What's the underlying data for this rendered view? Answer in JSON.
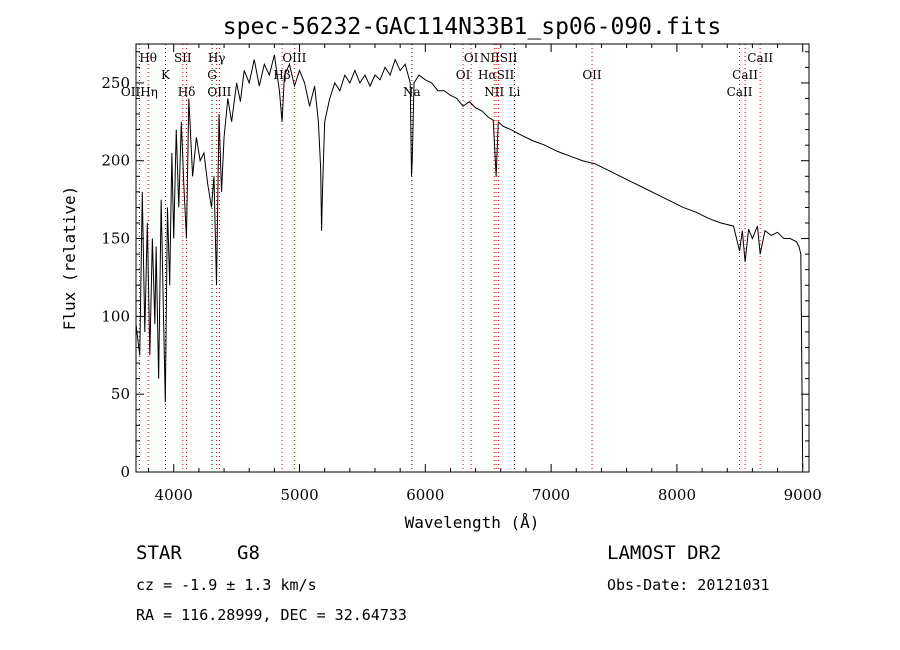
{
  "chart_data": {
    "type": "line",
    "title": "spec-56232-GAC114N33B1_sp06-090.fits",
    "xlabel": "Wavelength (Å)",
    "ylabel": "Flux (relative)",
    "xlim": [
      3700,
      9050
    ],
    "ylim": [
      0,
      275
    ],
    "x_ticks": [
      4000,
      5000,
      6000,
      7000,
      8000,
      9000
    ],
    "y_ticks": [
      0,
      50,
      100,
      150,
      200,
      250
    ],
    "grid": false,
    "series": [
      {
        "points": [
          [
            3700,
            95
          ],
          [
            3730,
            75
          ],
          [
            3750,
            180
          ],
          [
            3770,
            90
          ],
          [
            3790,
            160
          ],
          [
            3810,
            75
          ],
          [
            3830,
            150
          ],
          [
            3850,
            95
          ],
          [
            3860,
            145
          ],
          [
            3880,
            60
          ],
          [
            3900,
            175
          ],
          [
            3920,
            95
          ],
          [
            3933,
            45
          ],
          [
            3950,
            170
          ],
          [
            3968,
            120
          ],
          [
            3985,
            205
          ],
          [
            4000,
            150
          ],
          [
            4020,
            220
          ],
          [
            4040,
            170
          ],
          [
            4060,
            225
          ],
          [
            4080,
            185
          ],
          [
            4101,
            150
          ],
          [
            4120,
            240
          ],
          [
            4150,
            190
          ],
          [
            4180,
            215
          ],
          [
            4210,
            200
          ],
          [
            4240,
            205
          ],
          [
            4270,
            185
          ],
          [
            4300,
            170
          ],
          [
            4320,
            190
          ],
          [
            4340,
            120
          ],
          [
            4360,
            230
          ],
          [
            4380,
            180
          ],
          [
            4400,
            215
          ],
          [
            4430,
            240
          ],
          [
            4460,
            225
          ],
          [
            4500,
            250
          ],
          [
            4530,
            238
          ],
          [
            4560,
            258
          ],
          [
            4600,
            250
          ],
          [
            4640,
            265
          ],
          [
            4680,
            248
          ],
          [
            4720,
            262
          ],
          [
            4760,
            255
          ],
          [
            4800,
            268
          ],
          [
            4840,
            245
          ],
          [
            4861,
            225
          ],
          [
            4880,
            255
          ],
          [
            4920,
            262
          ],
          [
            4960,
            248
          ],
          [
            5000,
            258
          ],
          [
            5040,
            250
          ],
          [
            5080,
            235
          ],
          [
            5120,
            248
          ],
          [
            5150,
            225
          ],
          [
            5168,
            195
          ],
          [
            5175,
            155
          ],
          [
            5184,
            185
          ],
          [
            5200,
            225
          ],
          [
            5240,
            240
          ],
          [
            5280,
            250
          ],
          [
            5320,
            245
          ],
          [
            5360,
            255
          ],
          [
            5400,
            250
          ],
          [
            5440,
            258
          ],
          [
            5480,
            250
          ],
          [
            5520,
            255
          ],
          [
            5560,
            248
          ],
          [
            5600,
            255
          ],
          [
            5640,
            252
          ],
          [
            5680,
            260
          ],
          [
            5720,
            255
          ],
          [
            5760,
            265
          ],
          [
            5800,
            258
          ],
          [
            5840,
            262
          ],
          [
            5880,
            250
          ],
          [
            5890,
            190
          ],
          [
            5896,
            200
          ],
          [
            5910,
            250
          ],
          [
            5950,
            255
          ],
          [
            6000,
            252
          ],
          [
            6050,
            250
          ],
          [
            6100,
            245
          ],
          [
            6150,
            245
          ],
          [
            6200,
            242
          ],
          [
            6250,
            240
          ],
          [
            6300,
            235
          ],
          [
            6350,
            238
          ],
          [
            6400,
            234
          ],
          [
            6450,
            232
          ],
          [
            6500,
            228
          ],
          [
            6540,
            226
          ],
          [
            6563,
            190
          ],
          [
            6580,
            225
          ],
          [
            6620,
            222
          ],
          [
            6680,
            220
          ],
          [
            6750,
            217
          ],
          [
            6850,
            213
          ],
          [
            6950,
            210
          ],
          [
            7050,
            206
          ],
          [
            7150,
            203
          ],
          [
            7250,
            200
          ],
          [
            7350,
            198
          ],
          [
            7450,
            194
          ],
          [
            7550,
            190
          ],
          [
            7650,
            186
          ],
          [
            7750,
            182
          ],
          [
            7850,
            178
          ],
          [
            7950,
            174
          ],
          [
            8050,
            170
          ],
          [
            8150,
            167
          ],
          [
            8250,
            163
          ],
          [
            8350,
            160
          ],
          [
            8450,
            158
          ],
          [
            8498,
            142
          ],
          [
            8520,
            155
          ],
          [
            8542,
            135
          ],
          [
            8570,
            156
          ],
          [
            8600,
            150
          ],
          [
            8640,
            158
          ],
          [
            8662,
            140
          ],
          [
            8700,
            155
          ],
          [
            8750,
            152
          ],
          [
            8800,
            154
          ],
          [
            8850,
            150
          ],
          [
            8900,
            150
          ],
          [
            8950,
            148
          ],
          [
            8970,
            145
          ],
          [
            8985,
            140
          ],
          [
            9000,
            3
          ]
        ]
      }
    ],
    "line_markers": [
      {
        "label": "Hθ",
        "x": 3797,
        "row": 1,
        "color": "#dd0000"
      },
      {
        "label": "OIIHη",
        "x": 3727,
        "row": 3,
        "color": "#dd0000"
      },
      {
        "label": "K",
        "x": 3934,
        "row": 2,
        "color": "#000000"
      },
      {
        "label": "SII",
        "x": 4072,
        "row": 1,
        "color": "#dd0000"
      },
      {
        "label": "Hδ",
        "x": 4102,
        "row": 3,
        "color": "#dd0000"
      },
      {
        "label": "Hγ",
        "x": 4341,
        "row": 1,
        "color": "#dd0000"
      },
      {
        "label": "G",
        "x": 4305,
        "row": 2,
        "color": "#000000"
      },
      {
        "label": "OIII",
        "x": 4363,
        "row": 3,
        "color": "#dd0000"
      },
      {
        "label": "Hβ",
        "x": 4861,
        "row": 2,
        "color": "#dd0000"
      },
      {
        "label": "OIII",
        "x": 4959,
        "row": 1,
        "color": "#dd0000"
      },
      {
        "label": "Na",
        "x": 5893,
        "row": 3,
        "color": "#000000"
      },
      {
        "label": "OI",
        "x": 6364,
        "row": 1,
        "color": "#dd0000"
      },
      {
        "label": "OI",
        "x": 6300,
        "row": 2,
        "color": "#dd0000"
      },
      {
        "label": "NIISII",
        "x": 6583,
        "row": 1,
        "color": "#dd0000"
      },
      {
        "label": "HαSII",
        "x": 6563,
        "row": 2,
        "color": "#dd0000"
      },
      {
        "label": "NII",
        "x": 6548,
        "row": 3,
        "color": "#dd0000"
      },
      {
        "label": "Li",
        "x": 6708,
        "row": 3,
        "color": "#000000"
      },
      {
        "label": "OII",
        "x": 7325,
        "row": 2,
        "color": "#dd0000"
      },
      {
        "label": "CaII",
        "x": 8662,
        "row": 1,
        "color": "#dd0000"
      },
      {
        "label": "CaII",
        "x": 8542,
        "row": 2,
        "color": "#dd0000"
      },
      {
        "label": "CaII",
        "x": 8498,
        "row": 3,
        "color": "#dd0000"
      }
    ]
  },
  "info": {
    "object_class": "STAR",
    "subclass": "G8",
    "survey": "LAMOST DR2",
    "redshift_line": "cz = -1.9 ± 1.3 km/s",
    "obs_date": "Obs-Date: 20121031",
    "coords": "RA = 116.28999, DEC =  32.64733"
  }
}
